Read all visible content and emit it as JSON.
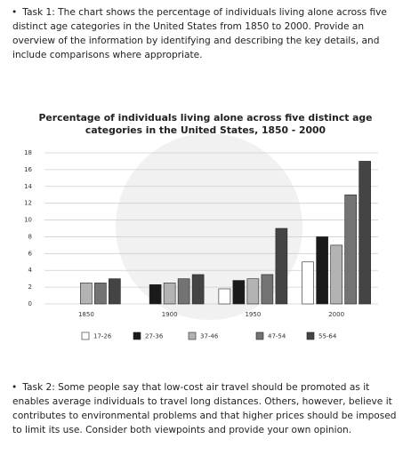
{
  "task1": "Task 1: The chart shows the percentage of individuals living alone across five distinct age categories in the United States from 1850 to 2000. Provide an overview of the information by identifying and describing the key details, and include comparisons where appropriate.",
  "task2": "Task 2: Some people say that low-cost air travel should be promoted as it enables average individuals to travel long distances. Others, however, believe it contributes to environmental problems and that higher prices should be imposed to limit its use. Consider both viewpoints and provide your own opinion.",
  "chart_data": {
    "type": "bar",
    "title": "Percentage of individuals living alone across five distinct age categories in the United States, 1850 - 2000",
    "categories": [
      "1850",
      "1900",
      "1950",
      "2000"
    ],
    "series": [
      {
        "name": "17-26",
        "color": "#ffffff",
        "values": [
          null,
          null,
          1.8,
          5
        ]
      },
      {
        "name": "27-36",
        "color": "#1a1a1a",
        "values": [
          null,
          2.3,
          2.8,
          8
        ]
      },
      {
        "name": "37-46",
        "color": "#b3b3b3",
        "values": [
          2.5,
          2.5,
          3,
          7
        ]
      },
      {
        "name": "47-54",
        "color": "#737373",
        "values": [
          2.5,
          3,
          3.5,
          13
        ]
      },
      {
        "name": "55-64",
        "color": "#444444",
        "values": [
          3,
          3.5,
          9,
          17
        ]
      }
    ],
    "ylim": [
      0,
      18
    ],
    "yticks": [
      0,
      2,
      4,
      6,
      8,
      10,
      12,
      14,
      16,
      18
    ],
    "grid": true
  }
}
